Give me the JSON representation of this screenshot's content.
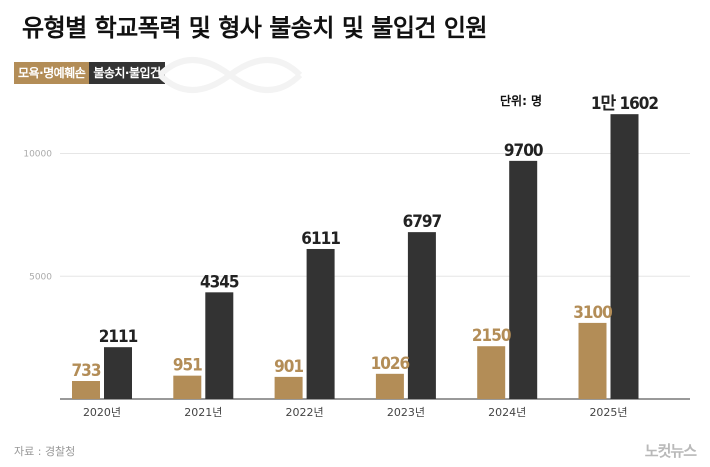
{
  "title": "유형별 학교폭력 및 형사 불송치 및 불입건 인원",
  "unit_label": "단위: 명",
  "source": "자료 : 경찰청",
  "logo": "노컷뉴스",
  "colors": {
    "brown": "#b38d57",
    "dark": "#333333",
    "grid": "#e6e6e6"
  },
  "chart_data": {
    "type": "bar",
    "categories": [
      "2020년",
      "2021년",
      "2022년",
      "2023년",
      "2024년",
      "2025년"
    ],
    "series": [
      {
        "name": "모욕·명예훼손",
        "values": [
          733,
          951,
          901,
          1026,
          2150,
          3100
        ],
        "labels": [
          "733",
          "951",
          "901",
          "1026",
          "2150",
          "3100"
        ],
        "color": "#b38d57"
      },
      {
        "name": "불송치·불입건",
        "values": [
          2111,
          4345,
          6111,
          6797,
          9700,
          11602
        ],
        "labels": [
          "2111",
          "4345",
          "6111",
          "6797",
          "9700",
          "1만 1602"
        ],
        "color": "#333333"
      }
    ],
    "y_ticks": [
      5000,
      10000
    ],
    "ylim": [
      0,
      12000
    ],
    "grid": true,
    "legend": "top-left"
  }
}
